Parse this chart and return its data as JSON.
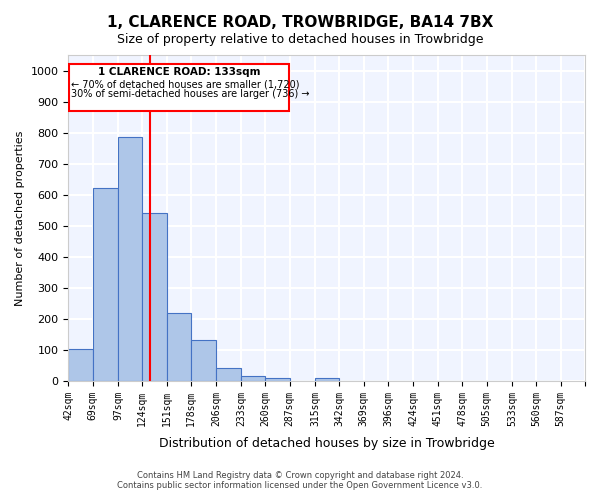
{
  "title": "1, CLARENCE ROAD, TROWBRIDGE, BA14 7BX",
  "subtitle": "Size of property relative to detached houses in Trowbridge",
  "xlabel": "Distribution of detached houses by size in Trowbridge",
  "ylabel": "Number of detached properties",
  "bar_color": "#aec6e8",
  "bar_edge_color": "#4472c4",
  "background_color": "#f0f4ff",
  "grid_color": "#ffffff",
  "bins": [
    "42sqm",
    "69sqm",
    "97sqm",
    "124sqm",
    "151sqm",
    "178sqm",
    "206sqm",
    "233sqm",
    "260sqm",
    "287sqm",
    "315sqm",
    "342sqm",
    "369sqm",
    "396sqm",
    "424sqm",
    "451sqm",
    "478sqm",
    "505sqm",
    "533sqm",
    "560sqm",
    "587sqm"
  ],
  "values": [
    102,
    622,
    787,
    540,
    220,
    133,
    42,
    17,
    10,
    0,
    10,
    0,
    0,
    0,
    0,
    0,
    0,
    0,
    0,
    0
  ],
  "ylim": [
    0,
    1050
  ],
  "yticks": [
    0,
    100,
    200,
    300,
    400,
    500,
    600,
    700,
    800,
    900,
    1000
  ],
  "property_line_x": 133,
  "bin_edges": [
    42,
    69,
    97,
    124,
    151,
    178,
    206,
    233,
    260,
    287,
    315,
    342,
    369,
    396,
    424,
    451,
    478,
    505,
    533,
    560,
    587
  ],
  "annotation_title": "1 CLARENCE ROAD: 133sqm",
  "annotation_line1": "← 70% of detached houses are smaller (1,720)",
  "annotation_line2": "30% of semi-detached houses are larger (736) →",
  "footer_line1": "Contains HM Land Registry data © Crown copyright and database right 2024.",
  "footer_line2": "Contains public sector information licensed under the Open Government Licence v3.0."
}
